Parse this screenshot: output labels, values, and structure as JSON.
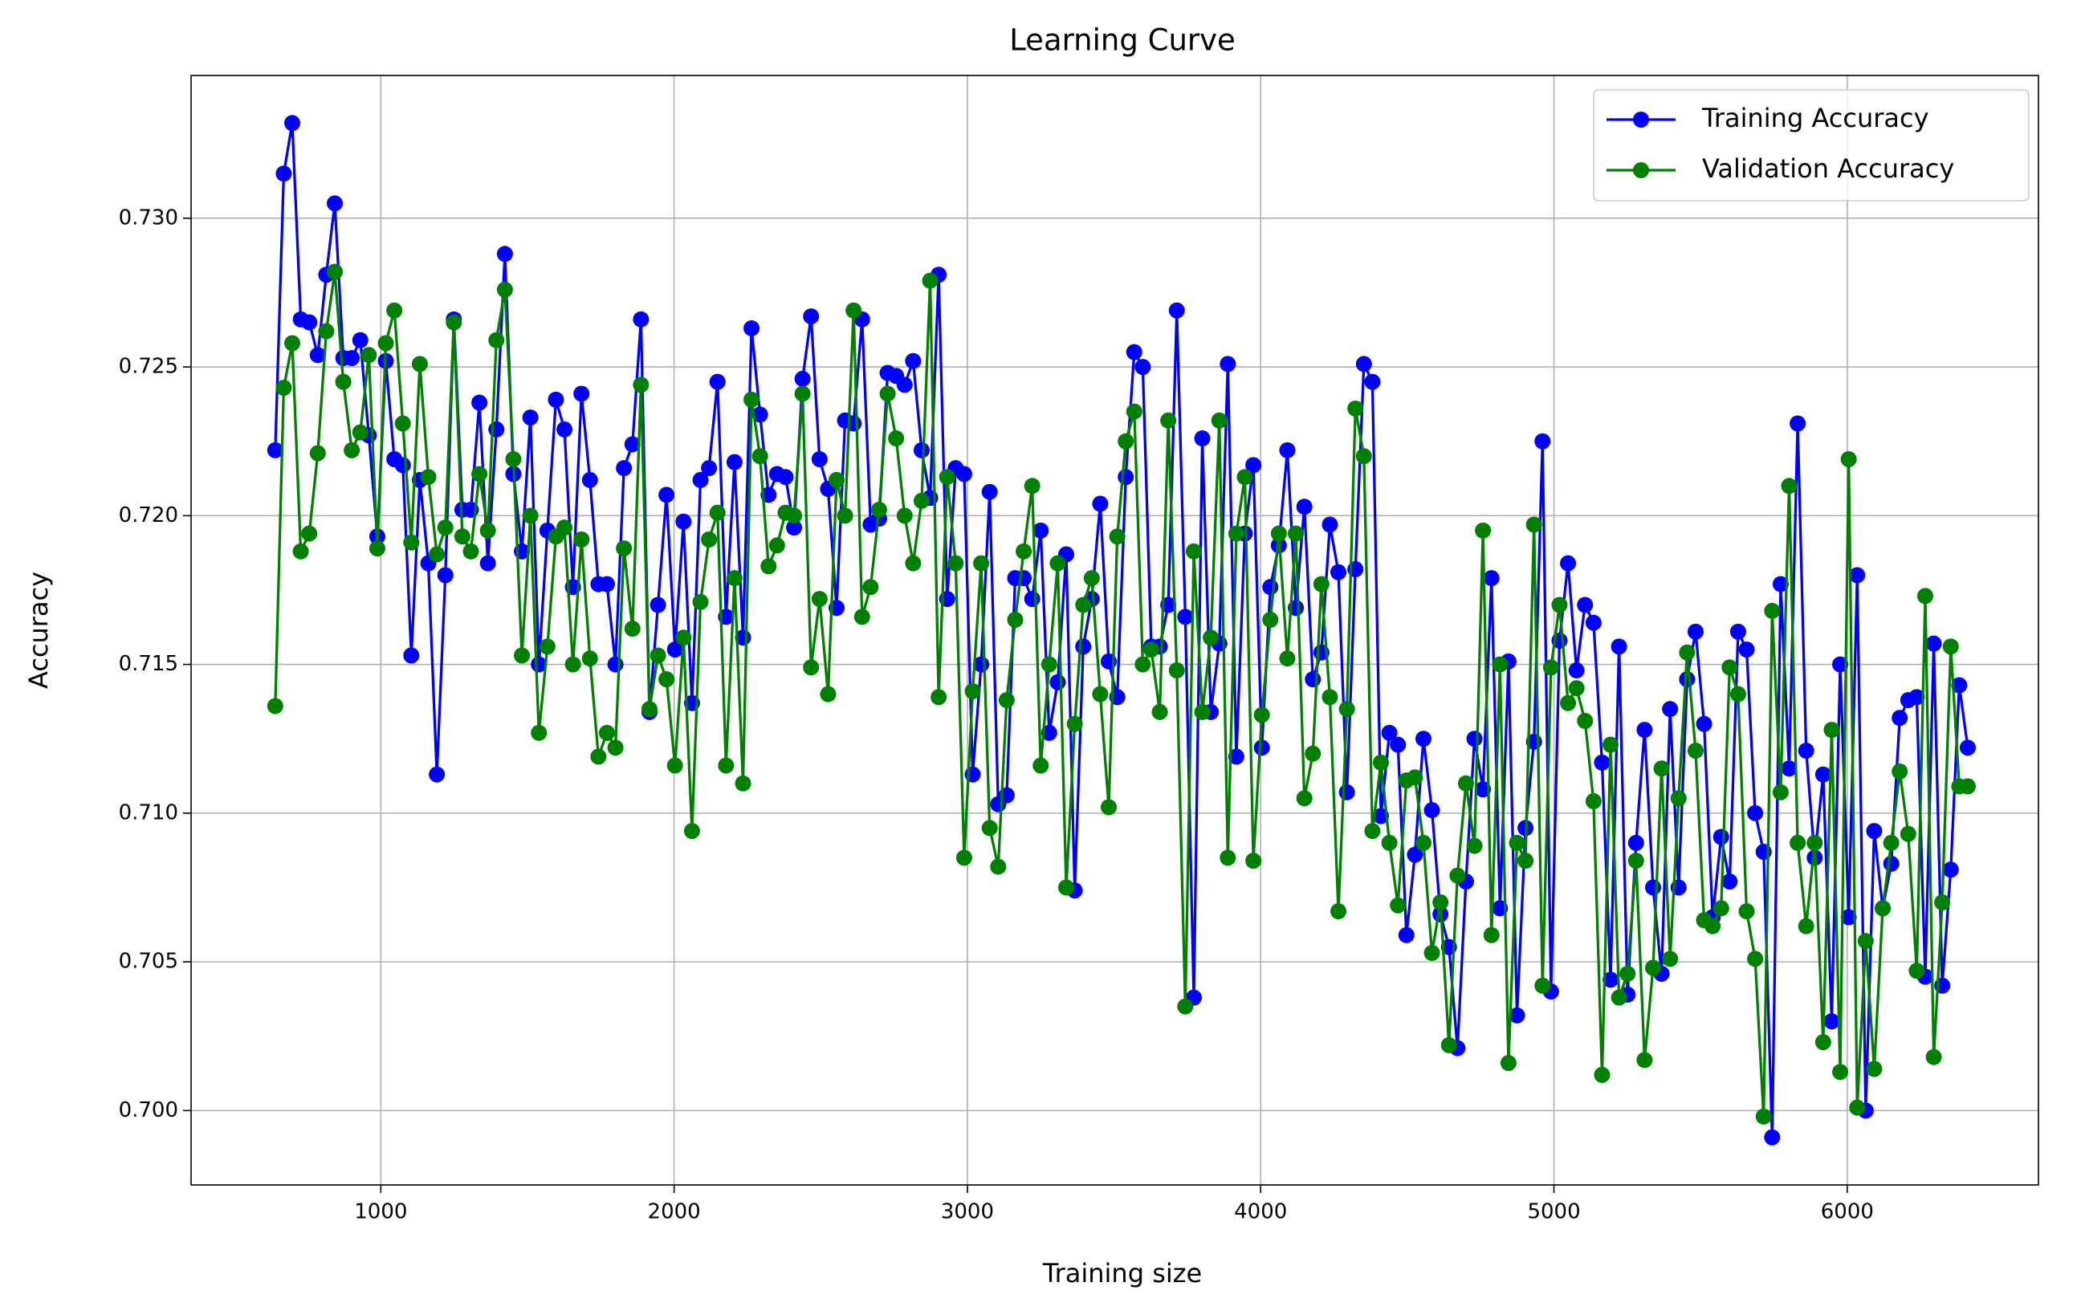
{
  "chart_data": {
    "type": "line",
    "title": "Learning Curve",
    "x_label": "Training size",
    "y_label": "Accuracy",
    "x": [
      640,
      669,
      698,
      727,
      756,
      785,
      814,
      843,
      872,
      901,
      930,
      959,
      988,
      1017,
      1046,
      1075,
      1104,
      1133,
      1162,
      1191,
      1220,
      1249,
      1278,
      1307,
      1336,
      1365,
      1394,
      1423,
      1452,
      1481,
      1510,
      1539,
      1568,
      1597,
      1626,
      1655,
      1684,
      1713,
      1742,
      1771,
      1800,
      1829,
      1858,
      1887,
      1916,
      1945,
      1974,
      2003,
      2032,
      2061,
      2090,
      2119,
      2148,
      2177,
      2206,
      2235,
      2264,
      2293,
      2322,
      2351,
      2380,
      2409,
      2438,
      2467,
      2496,
      2525,
      2554,
      2583,
      2612,
      2641,
      2670,
      2699,
      2728,
      2757,
      2786,
      2815,
      2844,
      2873,
      2902,
      2931,
      2960,
      2989,
      3018,
      3047,
      3076,
      3105,
      3134,
      3163,
      3192,
      3221,
      3250,
      3279,
      3308,
      3337,
      3366,
      3395,
      3424,
      3453,
      3482,
      3511,
      3540,
      3569,
      3598,
      3627,
      3656,
      3685,
      3714,
      3743,
      3772,
      3801,
      3830,
      3859,
      3888,
      3917,
      3946,
      3975,
      4004,
      4033,
      4062,
      4091,
      4120,
      4149,
      4178,
      4207,
      4236,
      4265,
      4294,
      4323,
      4352,
      4381,
      4410,
      4439,
      4468,
      4497,
      4526,
      4555,
      4584,
      4613,
      4642,
      4671,
      4700,
      4729,
      4758,
      4787,
      4816,
      4845,
      4874,
      4903,
      4932,
      4961,
      4990,
      5019,
      5048,
      5077,
      5106,
      5135,
      5164,
      5193,
      5222,
      5251,
      5280,
      5309,
      5338,
      5367,
      5396,
      5425,
      5454,
      5483,
      5512,
      5541,
      5570,
      5599,
      5628,
      5657,
      5686,
      5715,
      5744,
      5773,
      5802,
      5831,
      5860,
      5889,
      5918,
      5947,
      5976,
      6005,
      6034,
      6063,
      6092,
      6121,
      6150,
      6179,
      6208,
      6237,
      6266,
      6295,
      6324,
      6353,
      6382,
      6411
    ],
    "series": [
      {
        "name": "Training Accuracy",
        "color": "#0000ff",
        "values": [
          0.7222,
          0.7315,
          0.7332,
          0.7266,
          0.7265,
          0.7254,
          0.7281,
          0.7305,
          0.7253,
          0.7253,
          0.7259,
          0.7227,
          0.7193,
          0.7252,
          0.7219,
          0.7217,
          0.7153,
          0.7212,
          0.7184,
          0.7113,
          0.718,
          0.7266,
          0.7202,
          0.7202,
          0.7238,
          0.7184,
          0.7229,
          0.7288,
          0.7214,
          0.7188,
          0.7233,
          0.715,
          0.7195,
          0.7239,
          0.7229,
          0.7176,
          0.7241,
          0.7212,
          0.7177,
          0.7177,
          0.715,
          0.7216,
          0.7224,
          0.7266,
          0.7134,
          0.717,
          0.7207,
          0.7155,
          0.7198,
          0.7137,
          0.7212,
          0.7216,
          0.7245,
          0.7166,
          0.7218,
          0.7159,
          0.7263,
          0.7234,
          0.7207,
          0.7214,
          0.7213,
          0.7196,
          0.7246,
          0.7267,
          0.7219,
          0.7209,
          0.7169,
          0.7232,
          0.7231,
          0.7266,
          0.7197,
          0.7199,
          0.7248,
          0.7247,
          0.7244,
          0.7252,
          0.7222,
          0.7206,
          0.7281,
          0.7172,
          0.7216,
          0.7214,
          0.7113,
          0.715,
          0.7208,
          0.7103,
          0.7106,
          0.7179,
          0.7179,
          0.7172,
          0.7195,
          0.7127,
          0.7144,
          0.7187,
          0.7074,
          0.7156,
          0.7172,
          0.7204,
          0.7151,
          0.7139,
          0.7213,
          0.7255,
          0.725,
          0.7156,
          0.7156,
          0.717,
          0.7269,
          0.7166,
          0.7038,
          0.7226,
          0.7134,
          0.7157,
          0.7251,
          0.7119,
          0.7194,
          0.7217,
          0.7122,
          0.7176,
          0.719,
          0.7222,
          0.7169,
          0.7203,
          0.7145,
          0.7154,
          0.7197,
          0.7181,
          0.7107,
          0.7182,
          0.7251,
          0.7245,
          0.7099,
          0.7127,
          0.7123,
          0.7059,
          0.7086,
          0.7125,
          0.7101,
          0.7066,
          0.7055,
          0.7021,
          0.7077,
          0.7125,
          0.7108,
          0.7179,
          0.7068,
          0.7151,
          0.7032,
          0.7095,
          0.7124,
          0.7225,
          0.704,
          0.7158,
          0.7184,
          0.7148,
          0.717,
          0.7164,
          0.7117,
          0.7044,
          0.7156,
          0.7039,
          0.709,
          0.7128,
          0.7075,
          0.7046,
          0.7135,
          0.7075,
          0.7145,
          0.7161,
          0.713,
          0.7065,
          0.7092,
          0.7077,
          0.7161,
          0.7155,
          0.71,
          0.7087,
          0.6991,
          0.7177,
          0.7115,
          0.7231,
          0.7121,
          0.7085,
          0.7113,
          0.703,
          0.715,
          0.7065,
          0.718,
          0.7,
          0.7094,
          0.7068,
          0.7083,
          0.7132,
          0.7138,
          0.7139,
          0.7045,
          0.7157,
          0.7042,
          0.7081,
          0.7143,
          0.7122
        ]
      },
      {
        "name": "Validation Accuracy",
        "color": "#008000",
        "values": [
          0.7136,
          0.7243,
          0.7258,
          0.7188,
          0.7194,
          0.7221,
          0.7262,
          0.7282,
          0.7245,
          0.7222,
          0.7228,
          0.7254,
          0.7189,
          0.7258,
          0.7269,
          0.7231,
          0.7191,
          0.7251,
          0.7213,
          0.7187,
          0.7196,
          0.7265,
          0.7193,
          0.7188,
          0.7214,
          0.7195,
          0.7259,
          0.7276,
          0.7219,
          0.7153,
          0.72,
          0.7127,
          0.7156,
          0.7193,
          0.7196,
          0.715,
          0.7192,
          0.7152,
          0.7119,
          0.7127,
          0.7122,
          0.7189,
          0.7162,
          0.7244,
          0.7135,
          0.7153,
          0.7145,
          0.7116,
          0.7159,
          0.7094,
          0.7171,
          0.7192,
          0.7201,
          0.7116,
          0.7179,
          0.711,
          0.7239,
          0.722,
          0.7183,
          0.719,
          0.7201,
          0.72,
          0.7241,
          0.7149,
          0.7172,
          0.714,
          0.7212,
          0.72,
          0.7269,
          0.7166,
          0.7176,
          0.7202,
          0.7241,
          0.7226,
          0.72,
          0.7184,
          0.7205,
          0.7279,
          0.7139,
          0.7213,
          0.7184,
          0.7085,
          0.7141,
          0.7184,
          0.7095,
          0.7082,
          0.7138,
          0.7165,
          0.7188,
          0.721,
          0.7116,
          0.715,
          0.7184,
          0.7075,
          0.713,
          0.717,
          0.7179,
          0.714,
          0.7102,
          0.7193,
          0.7225,
          0.7235,
          0.715,
          0.7155,
          0.7134,
          0.7232,
          0.7148,
          0.7035,
          0.7188,
          0.7134,
          0.7159,
          0.7232,
          0.7085,
          0.7194,
          0.7213,
          0.7084,
          0.7133,
          0.7165,
          0.7194,
          0.7152,
          0.7194,
          0.7105,
          0.712,
          0.7177,
          0.7139,
          0.7067,
          0.7135,
          0.7236,
          0.722,
          0.7094,
          0.7117,
          0.709,
          0.7069,
          0.7111,
          0.7112,
          0.709,
          0.7053,
          0.707,
          0.7022,
          0.7079,
          0.711,
          0.7089,
          0.7195,
          0.7059,
          0.715,
          0.7016,
          0.709,
          0.7084,
          0.7197,
          0.7042,
          0.7149,
          0.717,
          0.7137,
          0.7142,
          0.7131,
          0.7104,
          0.7012,
          0.7123,
          0.7038,
          0.7046,
          0.7084,
          0.7017,
          0.7048,
          0.7115,
          0.7051,
          0.7105,
          0.7154,
          0.7121,
          0.7064,
          0.7062,
          0.7068,
          0.7149,
          0.714,
          0.7067,
          0.7051,
          0.6998,
          0.7168,
          0.7107,
          0.721,
          0.709,
          0.7062,
          0.709,
          0.7023,
          0.7128,
          0.7013,
          0.7219,
          0.7001,
          0.7057,
          0.7014,
          0.7068,
          0.709,
          0.7114,
          0.7093,
          0.7047,
          0.7173,
          0.7018,
          0.707,
          0.7156,
          0.7109,
          0.7109
        ]
      }
    ],
    "xlim": [
      353,
      6652
    ],
    "xticks": [
      1000,
      2000,
      3000,
      4000,
      5000,
      6000
    ],
    "ylim": [
      0.6975,
      0.7348
    ],
    "yticks": [
      {
        "value": 0.7,
        "label": "0.700"
      },
      {
        "value": 0.705,
        "label": "0.705"
      },
      {
        "value": 0.71,
        "label": "0.710"
      },
      {
        "value": 0.715,
        "label": "0.715"
      },
      {
        "value": 0.72,
        "label": "0.720"
      },
      {
        "value": 0.725,
        "label": "0.725"
      },
      {
        "value": 0.73,
        "label": "0.730"
      }
    ],
    "grid": true,
    "legend": "upper right"
  }
}
